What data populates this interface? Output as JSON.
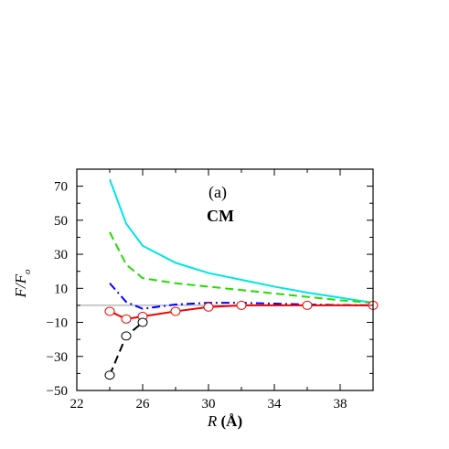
{
  "chart_data": {
    "type": "line",
    "xlabel": "R (Å)",
    "ylabel": "F/F",
    "ylabel_subscript": "o",
    "xlim": [
      22,
      40
    ],
    "ylim": [
      -50,
      80
    ],
    "xticks": [
      22,
      26,
      30,
      34,
      38
    ],
    "yticks": [
      -50,
      -30,
      -10,
      10,
      30,
      50,
      70
    ],
    "xtick_labels": [
      "22",
      "26",
      "30",
      "34",
      "38"
    ],
    "ytick_labels": [
      "−50",
      "−30",
      "−10",
      "10",
      "30",
      "50",
      "70"
    ],
    "reference_line": {
      "y": 0,
      "color": "#999999"
    },
    "annotations": [
      "(a)",
      "CM"
    ],
    "series": [
      {
        "color": "#00e5e5",
        "dash": "solid",
        "marker": "none",
        "x": [
          24,
          25,
          26,
          28,
          30,
          32,
          34,
          36,
          38,
          40
        ],
        "y": [
          74,
          48,
          35,
          25,
          19,
          15,
          11,
          7.5,
          4.5,
          1.5
        ]
      },
      {
        "color": "#22dd00",
        "dash": "dashed",
        "marker": "none",
        "x": [
          24,
          25,
          26,
          28,
          30,
          32,
          34,
          36,
          38,
          40
        ],
        "y": [
          43,
          24,
          16,
          13,
          11,
          9,
          7,
          5,
          3,
          1.5
        ]
      },
      {
        "color": "#0000ff",
        "dash": "dashdot",
        "marker": "none",
        "x": [
          24,
          25,
          26,
          28,
          30,
          32,
          34,
          36,
          38,
          40
        ],
        "y": [
          13,
          2,
          -2,
          0.5,
          1.5,
          1.5,
          1,
          0.5,
          0.2,
          0
        ]
      },
      {
        "color": "#ee0000",
        "dash": "solid",
        "marker": "circle",
        "marker_color": "#ee0000",
        "x": [
          24,
          25,
          26,
          28,
          30,
          32,
          36,
          40
        ],
        "y": [
          -3.5,
          -8,
          -6.5,
          -3.5,
          -1,
          0,
          0,
          0
        ]
      },
      {
        "color": "#000000",
        "dash": "dashed",
        "marker": "circle",
        "marker_color": "#000000",
        "x": [
          24,
          25,
          26
        ],
        "y": [
          -41,
          -18,
          -10
        ]
      }
    ]
  }
}
